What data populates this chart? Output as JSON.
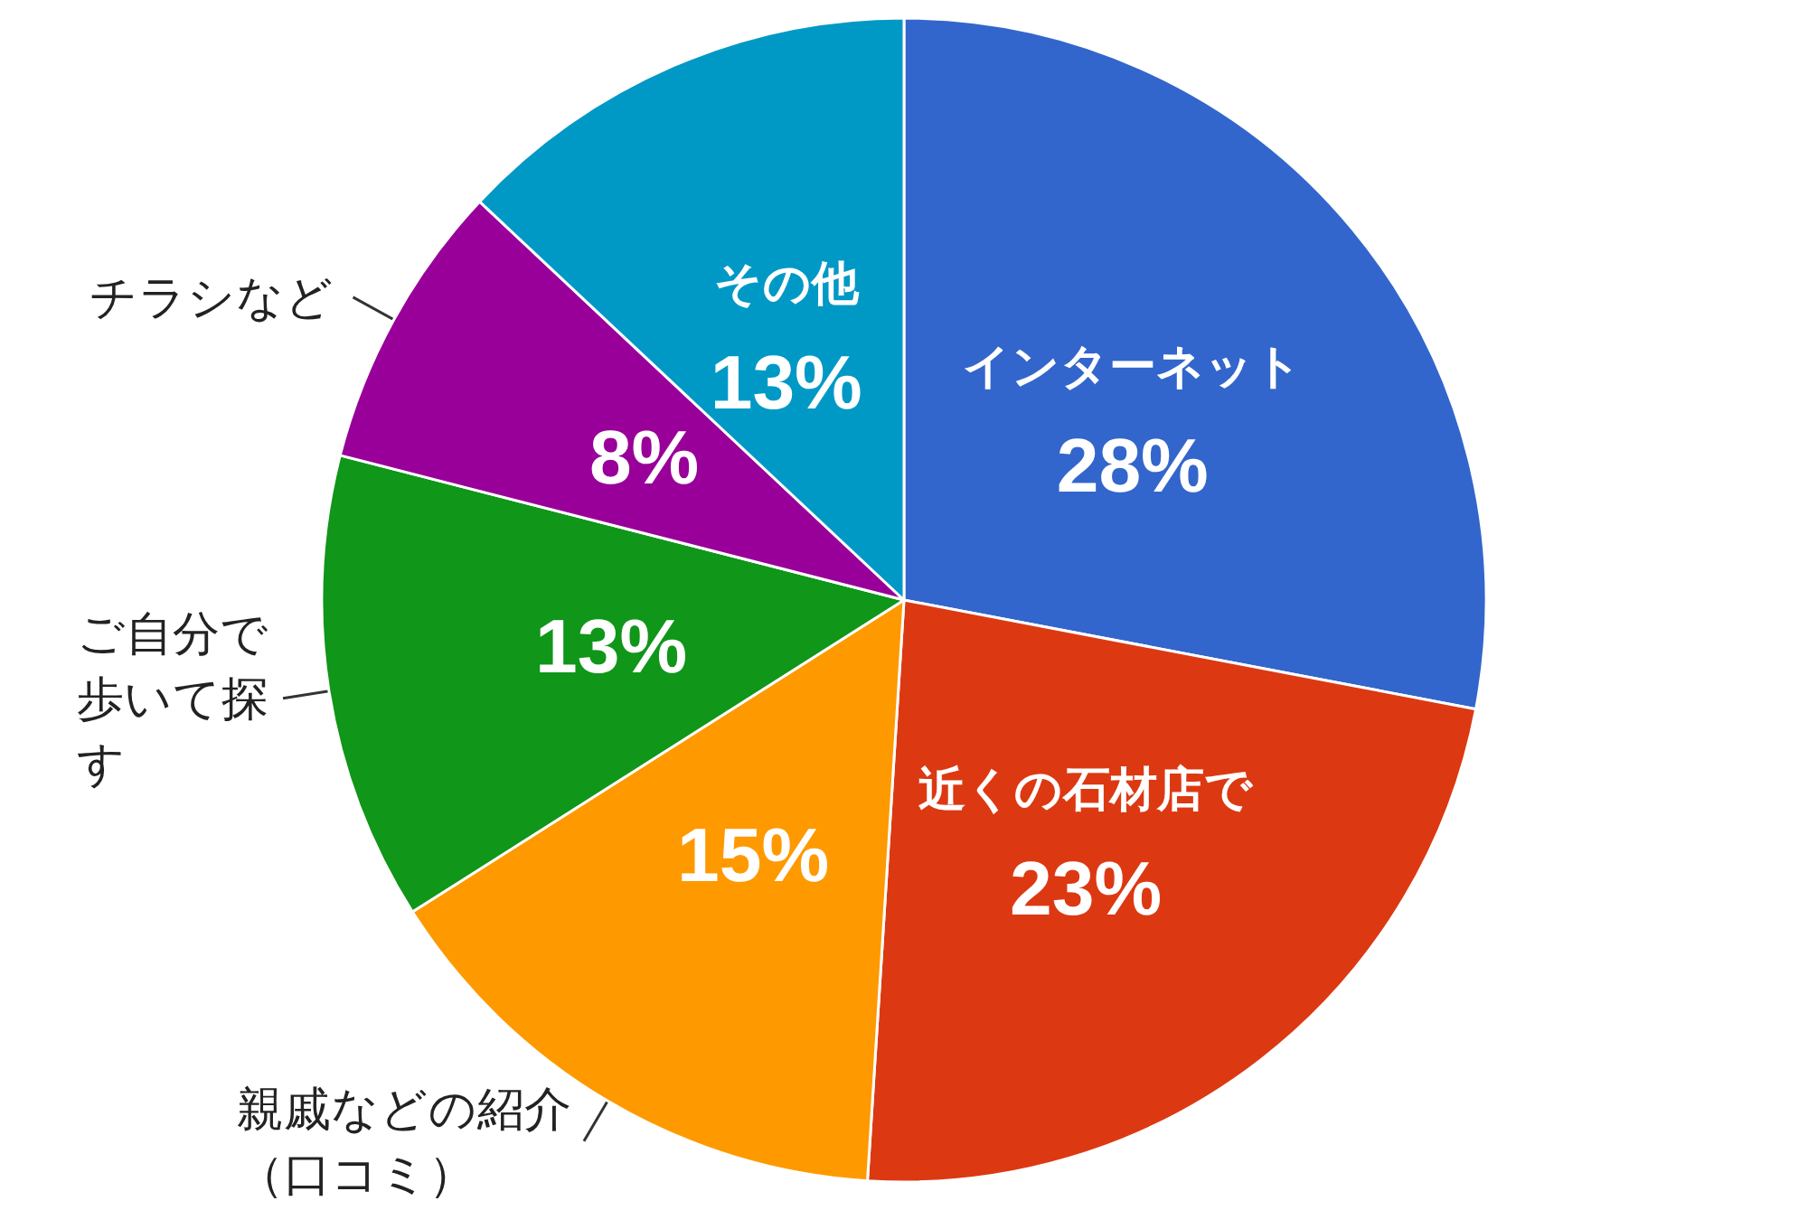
{
  "chart_data": {
    "type": "pie",
    "categories": [
      "インターネット",
      "近くの石材店で",
      "親戚などの紹介（口コミ）",
      "ご自分で歩いて探す",
      "チラシなど",
      "その他"
    ],
    "values": [
      28,
      23,
      15,
      13,
      8,
      13
    ],
    "colors": [
      "#3366cc",
      "#dc3912",
      "#ff9900",
      "#109618",
      "#990099",
      "#0099c6"
    ],
    "value_labels": [
      "28%",
      "23%",
      "15%",
      "13%",
      "8%",
      "13%"
    ]
  }
}
